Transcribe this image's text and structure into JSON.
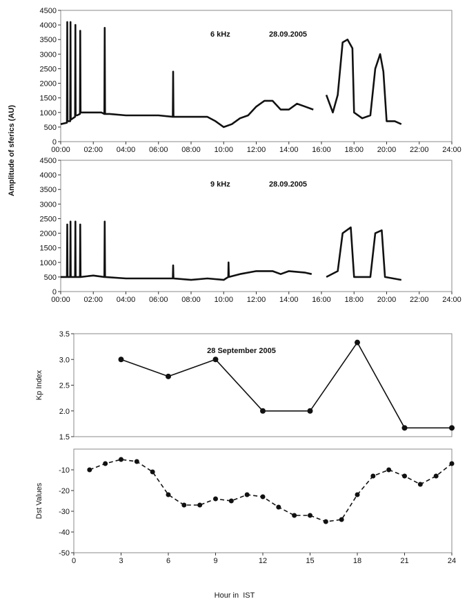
{
  "chart_data": [
    {
      "type": "line",
      "ylabel": "Amplitude of sferics (AU)",
      "annotations": [
        "6 kHz",
        "28.09.2005"
      ],
      "x": [
        0,
        0.38,
        0.4,
        0.42,
        0.58,
        0.6,
        0.62,
        0.88,
        0.9,
        0.92,
        1,
        1.18,
        1.2,
        1.22,
        1.5,
        2,
        2.5,
        2.68,
        2.7,
        2.72,
        3,
        4,
        5,
        6,
        6.88,
        6.9,
        6.92,
        7,
        8,
        9,
        9.5,
        10,
        10.5,
        11,
        11.5,
        12,
        12.5,
        13,
        13.5,
        14,
        14.5,
        15,
        15.5,
        16,
        16.3,
        16.7,
        17,
        17.3,
        17.6,
        17.9,
        18,
        18.5,
        19,
        19.3,
        19.6,
        19.8,
        20,
        20.5,
        20.9
      ],
      "series": [
        {
          "color": "#111111",
          "values": [
            600,
            650,
            4100,
            700,
            700,
            4100,
            750,
            850,
            4000,
            900,
            900,
            950,
            3800,
            1000,
            1000,
            1000,
            1000,
            950,
            3900,
            950,
            950,
            900,
            900,
            900,
            850,
            2400,
            850,
            850,
            850,
            850,
            700,
            500,
            600,
            800,
            900,
            1200,
            1400,
            1400,
            1100,
            1100,
            1300,
            1200,
            1100,
            null,
            1600,
            1000,
            1600,
            3400,
            3500,
            3200,
            1000,
            800,
            900,
            2500,
            3000,
            2400,
            700,
            700,
            600
          ]
        }
      ],
      "xlim": [
        0,
        24
      ],
      "ylim": [
        0,
        4500
      ],
      "xticks": [
        {
          "value": 0,
          "label": "00:00"
        },
        {
          "value": 2,
          "label": "02:00"
        },
        {
          "value": 4,
          "label": "04:00"
        },
        {
          "value": 6,
          "label": "06:00"
        },
        {
          "value": 8,
          "label": "08:00"
        },
        {
          "value": 10,
          "label": "10:00"
        },
        {
          "value": 12,
          "label": "12:00"
        },
        {
          "value": 14,
          "label": "14:00"
        },
        {
          "value": 16,
          "label": "16:00"
        },
        {
          "value": 18,
          "label": "18:00"
        },
        {
          "value": 20,
          "label": "20:00"
        },
        {
          "value": 22,
          "label": "22:00"
        },
        {
          "value": 24,
          "label": "24:00"
        }
      ],
      "yticks": [
        0,
        500,
        1000,
        1500,
        2000,
        2500,
        3000,
        3500,
        4000,
        4500
      ]
    },
    {
      "type": "line",
      "annotations": [
        "9 kHz",
        "28.09.2005"
      ],
      "x": [
        0,
        0.38,
        0.4,
        0.42,
        0.58,
        0.6,
        0.62,
        0.88,
        0.9,
        0.92,
        1.18,
        1.2,
        1.22,
        2,
        2.68,
        2.7,
        2.72,
        4,
        6,
        6.88,
        6.9,
        6.92,
        8,
        9,
        10,
        10.28,
        10.3,
        10.32,
        11,
        12,
        13,
        13.5,
        14,
        15,
        15.4,
        16,
        16.3,
        17,
        17.3,
        17.8,
        18,
        19,
        19.3,
        19.7,
        19.9,
        20.9
      ],
      "series": [
        {
          "color": "#111111",
          "values": [
            500,
            500,
            2300,
            500,
            500,
            2400,
            500,
            500,
            2400,
            500,
            500,
            2300,
            500,
            550,
            500,
            2400,
            500,
            450,
            450,
            450,
            900,
            450,
            400,
            450,
            400,
            500,
            1000,
            500,
            600,
            700,
            700,
            600,
            700,
            650,
            600,
            null,
            500,
            700,
            2000,
            2200,
            500,
            500,
            2000,
            2100,
            500,
            400
          ]
        }
      ],
      "xlim": [
        0,
        24
      ],
      "ylim": [
        0,
        4500
      ],
      "xticks": [
        {
          "value": 0,
          "label": "00:00"
        },
        {
          "value": 2,
          "label": "02:00"
        },
        {
          "value": 4,
          "label": "04:00"
        },
        {
          "value": 6,
          "label": "06:00"
        },
        {
          "value": 8,
          "label": "08:00"
        },
        {
          "value": 10,
          "label": "10:00"
        },
        {
          "value": 12,
          "label": "12:00"
        },
        {
          "value": 14,
          "label": "14:00"
        },
        {
          "value": 16,
          "label": "16:00"
        },
        {
          "value": 18,
          "label": "18:00"
        },
        {
          "value": 20,
          "label": "20:00"
        },
        {
          "value": 22,
          "label": "22:00"
        },
        {
          "value": 24,
          "label": "24:00"
        }
      ],
      "yticks": [
        0,
        500,
        1000,
        1500,
        2000,
        2500,
        3000,
        3500,
        4000,
        4500
      ]
    },
    {
      "type": "line",
      "title": "28 September 2005",
      "ylabel": "Kp Index",
      "markers": true,
      "x": [
        3,
        6,
        9,
        12,
        15,
        18,
        21,
        24
      ],
      "series": [
        {
          "color": "#111111",
          "values": [
            3.0,
            2.67,
            3.0,
            2.0,
            2.0,
            3.33,
            1.67,
            1.67
          ]
        }
      ],
      "xlim": [
        0,
        24
      ],
      "ylim": [
        1.5,
        3.5
      ],
      "yticks": [
        1.5,
        {
          "value": 2,
          "label": "2.0"
        },
        2.5,
        {
          "value": 3,
          "label": "3.0"
        },
        3.5
      ]
    },
    {
      "type": "line",
      "ylabel": "Dst Values",
      "xlabel": "Hour in  IST",
      "markers": true,
      "dashed": true,
      "x": [
        1,
        2,
        3,
        4,
        5,
        6,
        7,
        8,
        9,
        10,
        11,
        12,
        13,
        14,
        15,
        16,
        17,
        18,
        19,
        20,
        21,
        22,
        23,
        24
      ],
      "series": [
        {
          "color": "#111111",
          "values": [
            -10,
            -7,
            -5,
            -6,
            -11,
            -22,
            -27,
            -27,
            -24,
            -25,
            -22,
            -23,
            -28,
            -32,
            -32,
            -35,
            -34,
            -22,
            -13,
            -10,
            -13,
            -17,
            -13,
            -7
          ]
        }
      ],
      "xlim": [
        0,
        24
      ],
      "ylim": [
        -50,
        0
      ],
      "xticks": [
        0,
        3,
        6,
        9,
        12,
        15,
        18,
        21,
        24
      ],
      "yticks": [
        -50,
        -40,
        -30,
        -20,
        -10
      ]
    }
  ]
}
